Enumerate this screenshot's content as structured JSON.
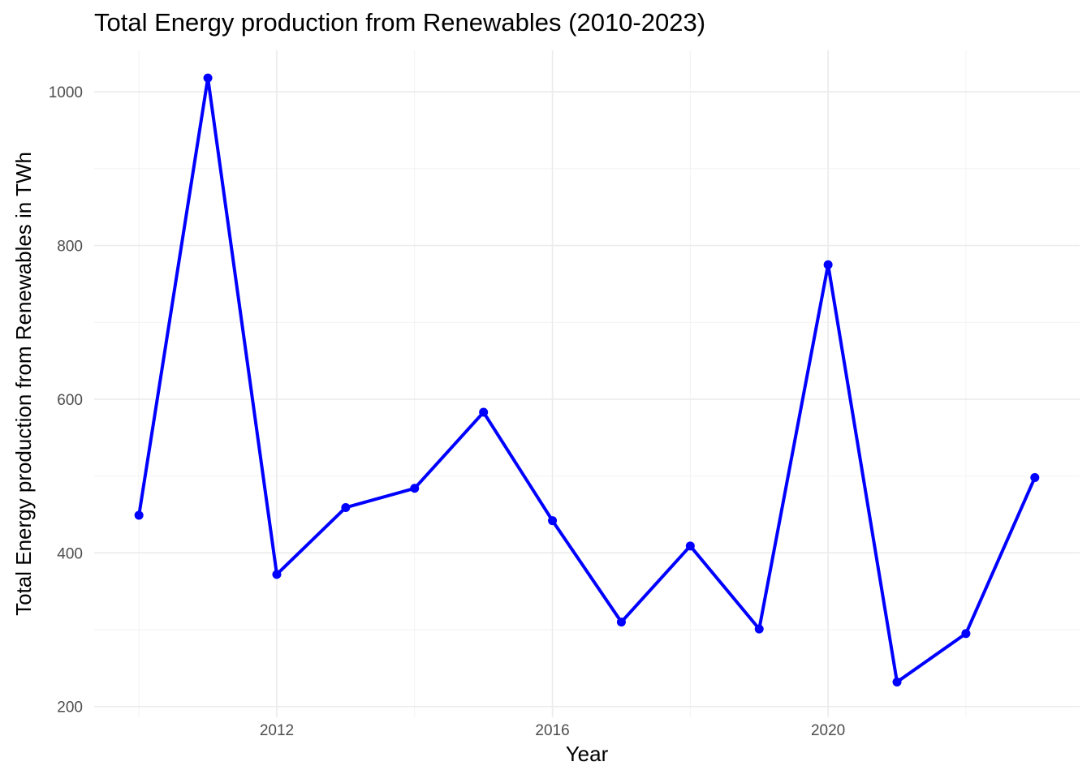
{
  "chart_data": {
    "type": "line",
    "title": "Total Energy production from Renewables (2010-2023)",
    "xlabel": "Year",
    "ylabel": "Total Energy production from Renewables in TWh",
    "x": [
      2010,
      2011,
      2012,
      2013,
      2014,
      2015,
      2016,
      2017,
      2018,
      2019,
      2020,
      2021,
      2022,
      2023
    ],
    "series": [
      {
        "values": [
          449,
          1018,
          372,
          459,
          484,
          583,
          442,
          310,
          409,
          301,
          775,
          232,
          295,
          498
        ],
        "color": "#0000ff"
      }
    ],
    "xticks": [
      2012,
      2016,
      2020
    ],
    "yticks": [
      200,
      400,
      600,
      800,
      1000
    ],
    "xlim": [
      2009.35,
      2023.65
    ],
    "ylim": [
      186,
      1054
    ],
    "grid": true,
    "legend": "none"
  }
}
